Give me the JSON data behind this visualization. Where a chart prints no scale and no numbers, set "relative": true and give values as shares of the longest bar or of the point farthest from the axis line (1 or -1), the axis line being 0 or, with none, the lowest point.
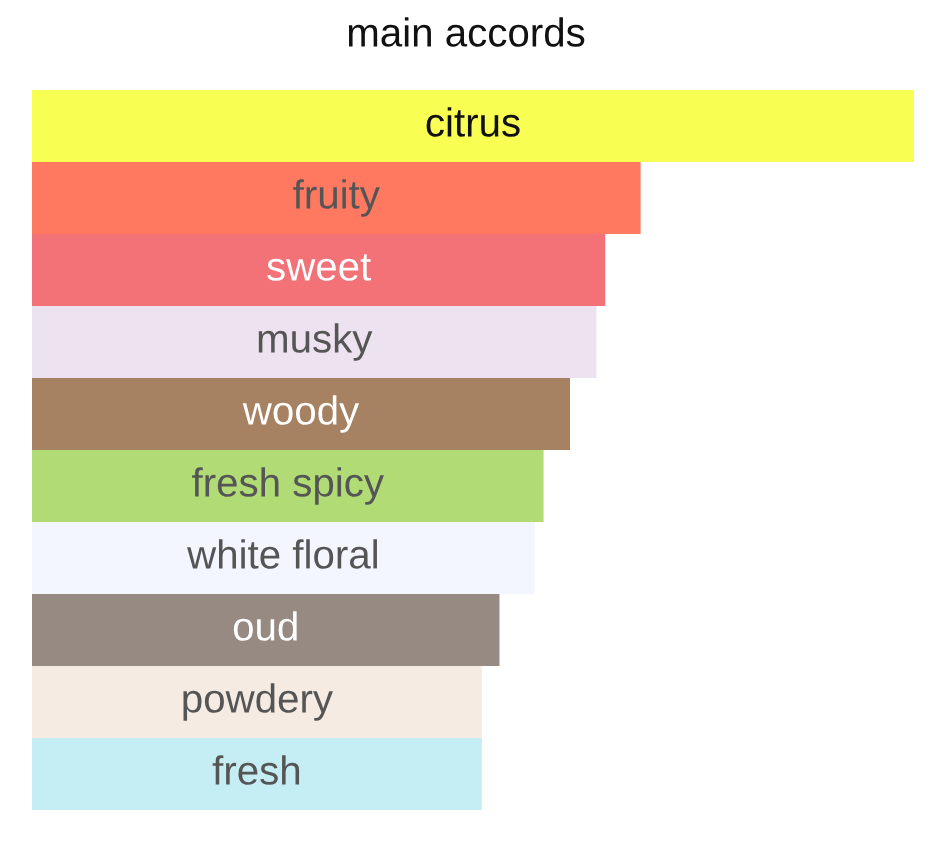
{
  "chart_data": {
    "type": "bar",
    "title": "main accords",
    "orientation": "horizontal",
    "relative": true,
    "categories": [
      "citrus",
      "fruity",
      "sweet",
      "musky",
      "woody",
      "fresh spicy",
      "white floral",
      "oud",
      "powdery",
      "fresh"
    ],
    "values": [
      1,
      0.69,
      0.65,
      0.64,
      0.61,
      0.58,
      0.57,
      0.53,
      0.51,
      0.51
    ],
    "colors": [
      "#f9ff52",
      "#ff7961",
      "#f27278",
      "#ede2f0",
      "#a68262",
      "#b1dc75",
      "#f3f6ff",
      "#978a83",
      "#f5ebe2",
      "#c5eef4"
    ]
  }
}
